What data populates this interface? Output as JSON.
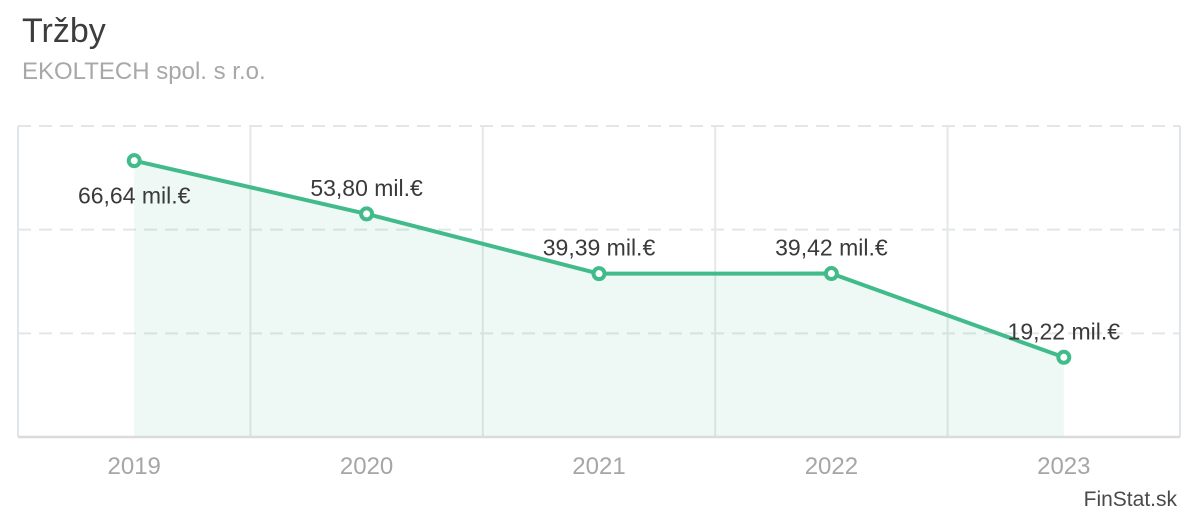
{
  "header": {
    "title": "Tržby",
    "subtitle": "EKOLTECH spol. s r.o."
  },
  "watermark": {
    "text": "FinStat.sk"
  },
  "colors": {
    "line": "#42bb8b",
    "area_fill": "rgba(66,187,139,0.09)",
    "marker_fill": "#ffffff",
    "grid_dashed": "#e3e6e8",
    "grid_vertical": "#e4e8ea",
    "plot_border": "#e0e5ea",
    "axis_line": "#d9dbdd",
    "data_label": "#3a3a3a",
    "tick_label": "#a6a6a6"
  },
  "chart_data": {
    "type": "line",
    "title": "Tržby",
    "subtitle": "EKOLTECH spol. s r.o.",
    "categories": [
      "2019",
      "2020",
      "2021",
      "2022",
      "2023"
    ],
    "values": [
      66.64,
      53.8,
      39.39,
      39.42,
      19.22
    ],
    "value_labels": [
      "66,64 mil.€",
      "53,80 mil.€",
      "39,39 mil.€",
      "39,42 mil.€",
      "19,22 mil.€"
    ],
    "label_placement": [
      "below",
      "above",
      "above",
      "above",
      "above"
    ],
    "unit": "mil.€",
    "xlabel": "",
    "ylabel": "",
    "ylim": [
      0,
      75
    ],
    "gridlines_y": [
      25,
      50,
      75
    ],
    "grid": "horizontal-dashed, vertical-band-separators",
    "legend": "none",
    "area": true,
    "markers": true
  }
}
